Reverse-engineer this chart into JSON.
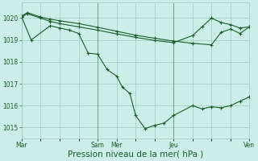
{
  "background_color": "#cceee8",
  "grid_color": "#99ccbb",
  "line_color": "#1a5c2a",
  "xlabel": "Pression niveau de la mer( hPa )",
  "xlabel_fontsize": 7.5,
  "ylim": [
    1014.5,
    1020.7
  ],
  "yticks": [
    1015,
    1016,
    1017,
    1018,
    1019,
    1020
  ],
  "xtick_positions": [
    0,
    4,
    5,
    8,
    12
  ],
  "xtick_labels": [
    "Mar",
    "Sam",
    "Mer",
    "Jeu",
    "Ven"
  ],
  "xgrid_positions": [
    0,
    1,
    2,
    3,
    4,
    5,
    6,
    7,
    8,
    9,
    10,
    11,
    12
  ],
  "s1x": [
    0,
    0.5,
    1.5,
    2.0,
    2.5,
    3.0,
    3.5,
    4.0,
    4.5,
    5.0,
    5.3,
    5.7,
    6.0,
    6.5,
    7.0,
    7.5,
    8.0,
    9.0,
    9.5,
    10.0,
    10.5,
    11.0,
    11.5,
    12.0
  ],
  "s1y": [
    1020.05,
    1019.0,
    1019.65,
    1019.55,
    1019.45,
    1019.3,
    1018.4,
    1018.35,
    1017.65,
    1017.35,
    1016.85,
    1016.55,
    1015.55,
    1014.95,
    1015.1,
    1015.2,
    1015.55,
    1016.0,
    1015.85,
    1015.95,
    1015.9,
    1016.0,
    1016.2,
    1016.4
  ],
  "s2x": [
    0,
    0.3,
    1.0,
    1.5,
    2.0,
    3.0,
    4.0,
    5.0,
    6.0,
    7.0,
    8.0,
    9.0,
    10.0,
    10.5,
    11.0,
    11.5,
    12.0
  ],
  "s2y": [
    1020.1,
    1020.25,
    1020.05,
    1019.95,
    1019.88,
    1019.75,
    1019.58,
    1019.4,
    1019.22,
    1019.08,
    1018.95,
    1018.85,
    1018.78,
    1019.35,
    1019.5,
    1019.3,
    1019.6
  ],
  "s3x": [
    0,
    0.3,
    1.0,
    1.5,
    2.0,
    3.0,
    4.0,
    5.0,
    6.0,
    7.0,
    8.0,
    9.0,
    9.5,
    10.0,
    10.5,
    11.0,
    11.5,
    12.0
  ],
  "s3y": [
    1020.05,
    1020.2,
    1020.0,
    1019.85,
    1019.75,
    1019.6,
    1019.45,
    1019.28,
    1019.12,
    1018.98,
    1018.88,
    1019.2,
    1019.6,
    1020.0,
    1019.8,
    1019.7,
    1019.55,
    1019.6
  ]
}
